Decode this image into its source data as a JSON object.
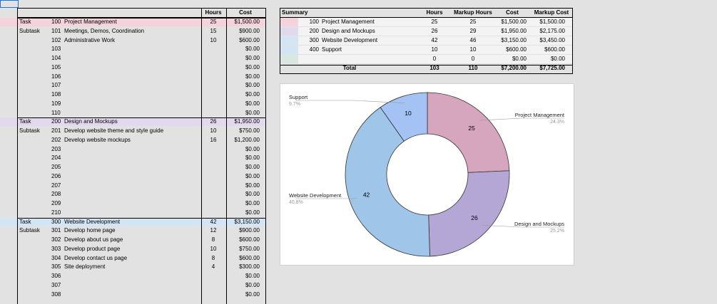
{
  "task_table": {
    "headers": {
      "hours": "Hours",
      "cost": "Cost"
    },
    "rows": [
      {
        "type": "Task",
        "num": "100",
        "name": "Project Management",
        "hours": "25",
        "cost": "$1,500.00",
        "band": "#f4d3dd"
      },
      {
        "type": "Subtask",
        "num": "101",
        "name": "Meetings, Demos, Coordination",
        "hours": "15",
        "cost": "$900.00"
      },
      {
        "type": "",
        "num": "102",
        "name": "Administrative Work",
        "hours": "10",
        "cost": "$600.00"
      },
      {
        "type": "",
        "num": "103",
        "name": "",
        "hours": "",
        "cost": "$0.00"
      },
      {
        "type": "",
        "num": "104",
        "name": "",
        "hours": "",
        "cost": "$0.00"
      },
      {
        "type": "",
        "num": "105",
        "name": "",
        "hours": "",
        "cost": "$0.00"
      },
      {
        "type": "",
        "num": "106",
        "name": "",
        "hours": "",
        "cost": "$0.00"
      },
      {
        "type": "",
        "num": "107",
        "name": "",
        "hours": "",
        "cost": "$0.00"
      },
      {
        "type": "",
        "num": "108",
        "name": "",
        "hours": "",
        "cost": "$0.00"
      },
      {
        "type": "",
        "num": "109",
        "name": "",
        "hours": "",
        "cost": "$0.00"
      },
      {
        "type": "",
        "num": "110",
        "name": "",
        "hours": "",
        "cost": "$0.00"
      },
      {
        "type": "Task",
        "num": "200",
        "name": "Design and Mockups",
        "hours": "26",
        "cost": "$1,950.00",
        "band": "#e2d9ef"
      },
      {
        "type": "Subtask",
        "num": "201",
        "name": "Develop website theme and style guide",
        "hours": "10",
        "cost": "$750.00"
      },
      {
        "type": "",
        "num": "202",
        "name": "Develop website mockups",
        "hours": "16",
        "cost": "$1,200.00"
      },
      {
        "type": "",
        "num": "203",
        "name": "",
        "hours": "",
        "cost": "$0.00"
      },
      {
        "type": "",
        "num": "204",
        "name": "",
        "hours": "",
        "cost": "$0.00"
      },
      {
        "type": "",
        "num": "205",
        "name": "",
        "hours": "",
        "cost": "$0.00"
      },
      {
        "type": "",
        "num": "206",
        "name": "",
        "hours": "",
        "cost": "$0.00"
      },
      {
        "type": "",
        "num": "207",
        "name": "",
        "hours": "",
        "cost": "$0.00"
      },
      {
        "type": "",
        "num": "208",
        "name": "",
        "hours": "",
        "cost": "$0.00"
      },
      {
        "type": "",
        "num": "209",
        "name": "",
        "hours": "",
        "cost": "$0.00"
      },
      {
        "type": "",
        "num": "210",
        "name": "",
        "hours": "",
        "cost": "$0.00"
      },
      {
        "type": "Task",
        "num": "300",
        "name": "Website Development",
        "hours": "42",
        "cost": "$3,150.00",
        "band": "#d3e5f5"
      },
      {
        "type": "Subtask",
        "num": "301",
        "name": "Develop home page",
        "hours": "12",
        "cost": "$900.00"
      },
      {
        "type": "",
        "num": "302",
        "name": "Develop about us page",
        "hours": "8",
        "cost": "$600.00"
      },
      {
        "type": "",
        "num": "303",
        "name": "Develop product page",
        "hours": "10",
        "cost": "$750.00"
      },
      {
        "type": "",
        "num": "304",
        "name": "Develop contact us page",
        "hours": "8",
        "cost": "$600.00"
      },
      {
        "type": "",
        "num": "305",
        "name": "Site deployment",
        "hours": "4",
        "cost": "$300.00"
      },
      {
        "type": "",
        "num": "306",
        "name": "",
        "hours": "",
        "cost": "$0.00"
      },
      {
        "type": "",
        "num": "307",
        "name": "",
        "hours": "",
        "cost": "$0.00"
      },
      {
        "type": "",
        "num": "308",
        "name": "",
        "hours": "",
        "cost": "$0.00"
      }
    ]
  },
  "summary_table": {
    "headers": {
      "summary": "Summary",
      "hours": "Hours",
      "markup_hours": "Markup Hours",
      "cost": "Cost",
      "markup_cost": "Markup Cost"
    },
    "rows": [
      {
        "swatch": "#f4d3dd",
        "num": "100",
        "name": "Project Management",
        "hours": "25",
        "markup_hours": "25",
        "cost": "$1,500.00",
        "markup_cost": "$1,500.00"
      },
      {
        "swatch": "#e2d9ef",
        "num": "200",
        "name": "Design and Mockups",
        "hours": "26",
        "markup_hours": "29",
        "cost": "$1,950.00",
        "markup_cost": "$2,175.00"
      },
      {
        "swatch": "#d3e5f5",
        "num": "300",
        "name": "Website Development",
        "hours": "42",
        "markup_hours": "46",
        "cost": "$3,150.00",
        "markup_cost": "$3,450.00"
      },
      {
        "swatch": "#d3e5f5",
        "num": "400",
        "name": "Support",
        "hours": "10",
        "markup_hours": "10",
        "cost": "$600.00",
        "markup_cost": "$600.00"
      },
      {
        "swatch": "#d9e7e2",
        "num": "",
        "name": "",
        "hours": "0",
        "markup_hours": "0",
        "cost": "$0.00",
        "markup_cost": "$0.00"
      }
    ],
    "total": {
      "label": "Total",
      "hours": "103",
      "markup_hours": "110",
      "cost": "$7,200.00",
      "markup_cost": "$7,725.00"
    }
  },
  "chart_data": {
    "type": "pie",
    "donut": true,
    "categories": [
      "Project Management",
      "Design and Mockups",
      "Website Development",
      "Support"
    ],
    "values": [
      25,
      26,
      42,
      10
    ],
    "percent_labels": [
      "24.3%",
      "25.2%",
      "40.8%",
      "9.7%"
    ],
    "colors": [
      "#d5a6bd",
      "#b4a7d6",
      "#9fc5e8",
      "#a4c2f4"
    ],
    "title": ""
  }
}
